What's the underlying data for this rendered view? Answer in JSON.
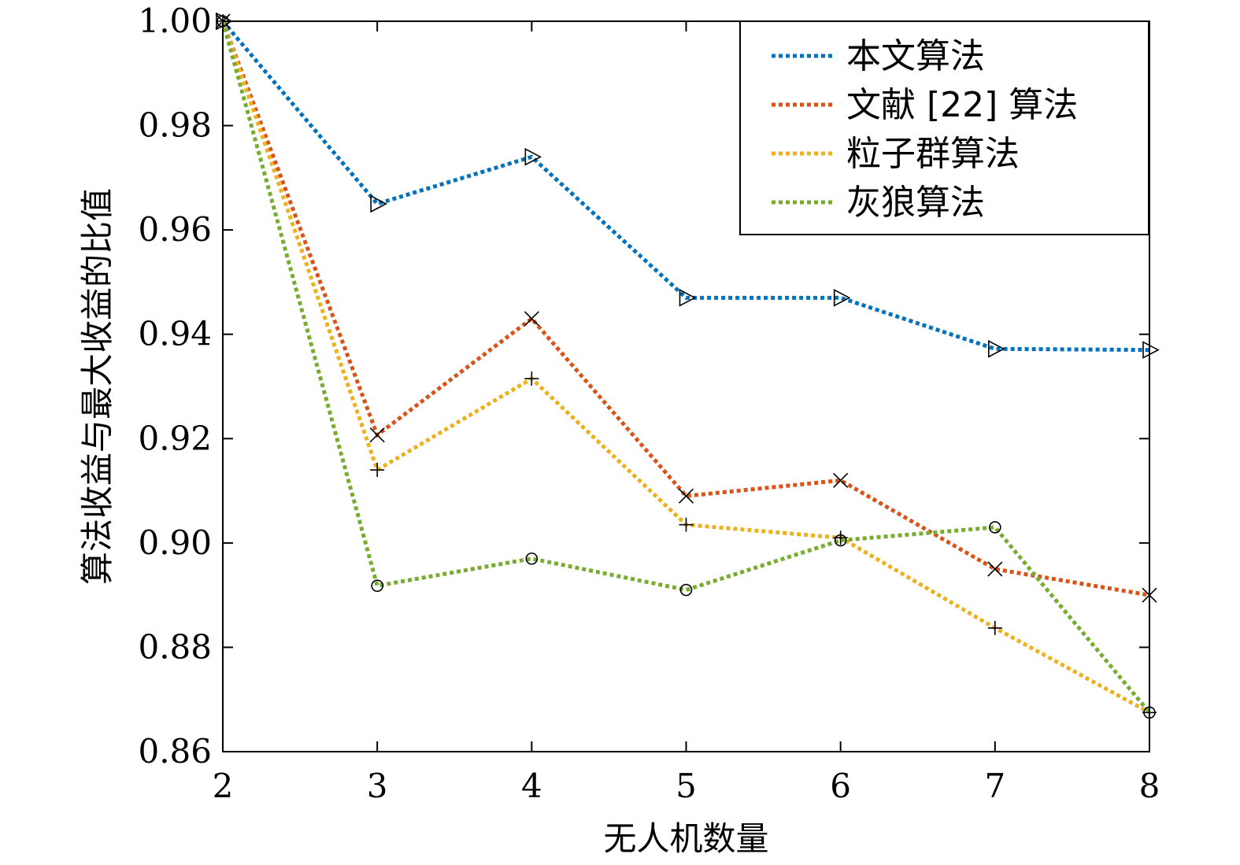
{
  "chart_data": {
    "type": "line",
    "xlabel": "无人机数量",
    "ylabel": "算法收益与最大收益的比值",
    "x": [
      2,
      3,
      4,
      5,
      6,
      7,
      8
    ],
    "xlim": [
      2,
      8
    ],
    "ylim": [
      0.86,
      1.0
    ],
    "xticks": [
      "2",
      "3",
      "4",
      "5",
      "6",
      "7",
      "8"
    ],
    "yticks": [
      "0.86",
      "0.88",
      "0.90",
      "0.92",
      "0.94",
      "0.96",
      "0.98",
      "1.00"
    ],
    "ytick_values": [
      0.86,
      0.88,
      0.9,
      0.92,
      0.94,
      0.96,
      0.98,
      1.0
    ],
    "grid": false,
    "legend_position": "top-right",
    "series": [
      {
        "name": "本文算法",
        "color": "#0072BD",
        "marker": "triangle-right",
        "values": [
          1.0,
          0.965,
          0.974,
          0.947,
          0.947,
          0.9372,
          0.937
        ]
      },
      {
        "name": "文献 [22] 算法",
        "color": "#D95319",
        "marker": "x",
        "values": [
          1.0,
          0.9207,
          0.943,
          0.909,
          0.912,
          0.895,
          0.89
        ]
      },
      {
        "name": "粒子群算法",
        "color": "#EDB120",
        "marker": "plus",
        "values": [
          1.0,
          0.914,
          0.9315,
          0.9035,
          0.901,
          0.8837,
          0.8675
        ]
      },
      {
        "name": "灰狼算法",
        "color": "#77AC30",
        "marker": "circle",
        "values": [
          1.0,
          0.8918,
          0.897,
          0.891,
          0.9005,
          0.903,
          0.8675
        ]
      }
    ]
  }
}
